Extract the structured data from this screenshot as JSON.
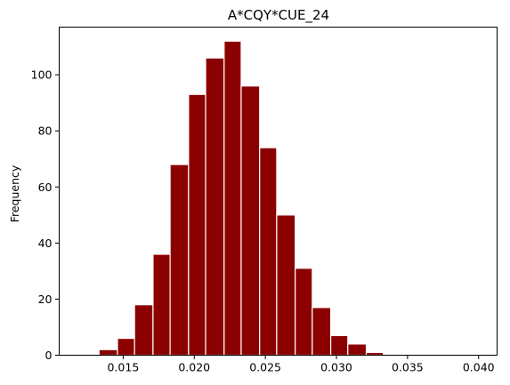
{
  "chart_data": {
    "type": "bar",
    "title": "A*CQY*CUE_24",
    "xlabel": "",
    "ylabel": "Frequency",
    "xlim": [
      0.0105,
      0.0413
    ],
    "ylim": [
      0,
      117
    ],
    "xticks": [
      0.015,
      0.02,
      0.025,
      0.03,
      0.035,
      0.04
    ],
    "xtick_labels": [
      "0.015",
      "0.020",
      "0.025",
      "0.030",
      "0.035",
      "0.040"
    ],
    "yticks": [
      0,
      20,
      40,
      60,
      80,
      100
    ],
    "ytick_labels": [
      "0",
      "20",
      "40",
      "60",
      "80",
      "100"
    ],
    "bin_edges": [
      0.0133,
      0.0146,
      0.0158,
      0.0171,
      0.0183,
      0.0196,
      0.0208,
      0.0221,
      0.0233,
      0.0246,
      0.0258,
      0.0271,
      0.0283,
      0.0296,
      0.0308,
      0.0321,
      0.0333,
      0.0346,
      0.0358
    ],
    "values": [
      2,
      6,
      18,
      36,
      68,
      93,
      106,
      112,
      96,
      74,
      50,
      31,
      17,
      7,
      4,
      1,
      0,
      0
    ],
    "bar_color": "#8b0000",
    "edge_color": "#ffffff",
    "grid": false
  }
}
